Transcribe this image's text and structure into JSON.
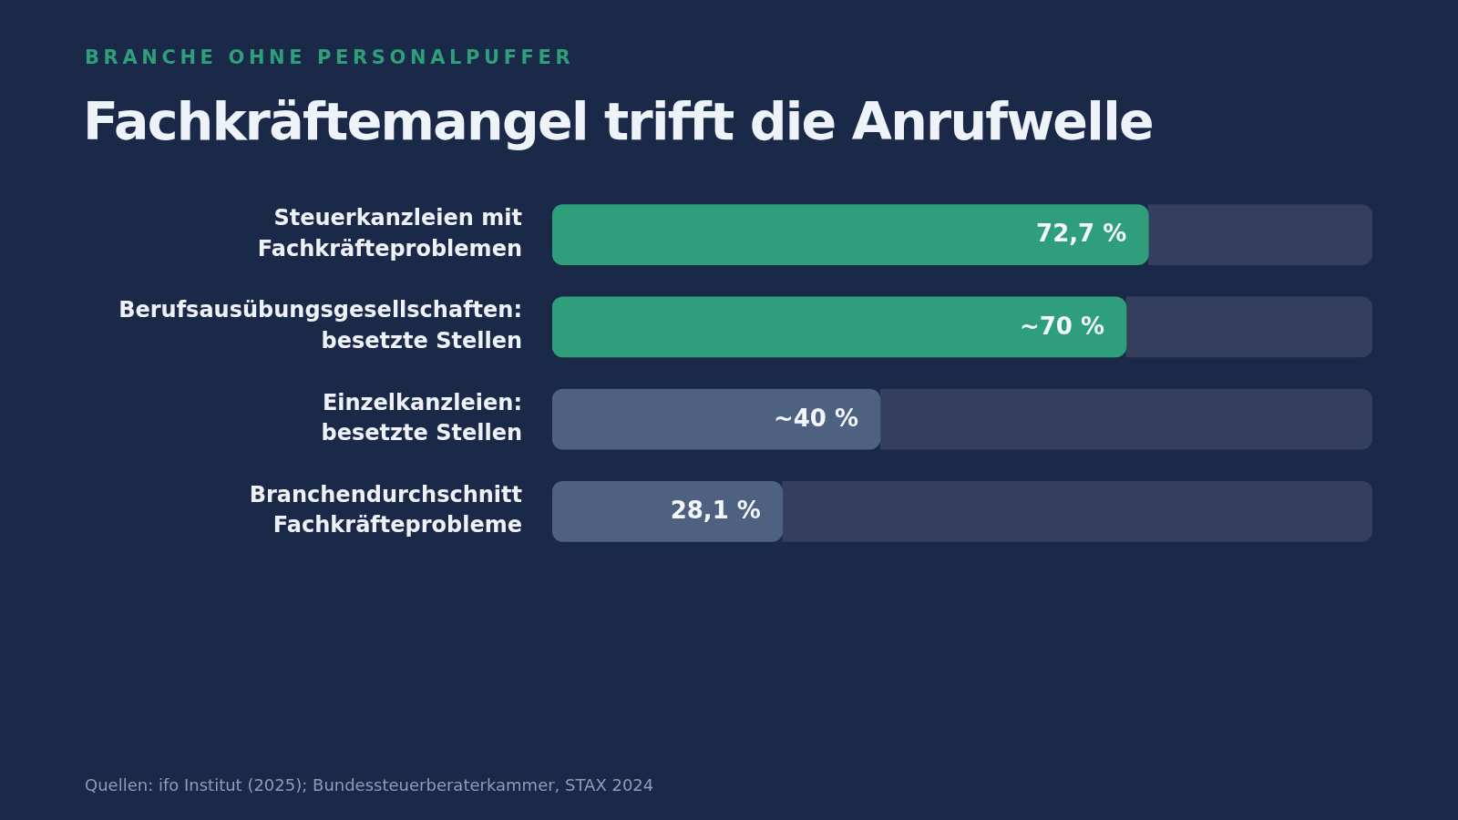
{
  "chart_data": {
    "type": "bar",
    "orientation": "horizontal",
    "stacked": true,
    "subtitle": "BRANCHE OHNE PERSONALPUFFER",
    "title": "Fachkräftemangel trifft die Anrufwelle",
    "categories": [
      "Steuerkanzleien mit Fachkräfteproblemen",
      "Berufsausübungsgesellschaften: besetzte Stellen",
      "Einzelkanzleien: besetzte Stellen",
      "Branchendurchschnitt Fachkräfteprobleme"
    ],
    "series": [
      {
        "colors": [
          "#2e9e7b",
          "#2e9e7b",
          "#4f6180",
          "#4f6180"
        ],
        "values": [
          72.7,
          70,
          40,
          28.1
        ],
        "value_labels": [
          "72,7 %",
          "~70 %",
          "~40 %",
          "28,1 %"
        ]
      },
      {
        "color": "#333f5d",
        "values": [
          27.3,
          30,
          60,
          71.9
        ]
      }
    ],
    "xlim": [
      0,
      100
    ],
    "tick_labels": "y",
    "annotations": [
      "Quellen: ifo Institut (2025); Bundessteuerberaterkammer, STAX 2024"
    ]
  }
}
